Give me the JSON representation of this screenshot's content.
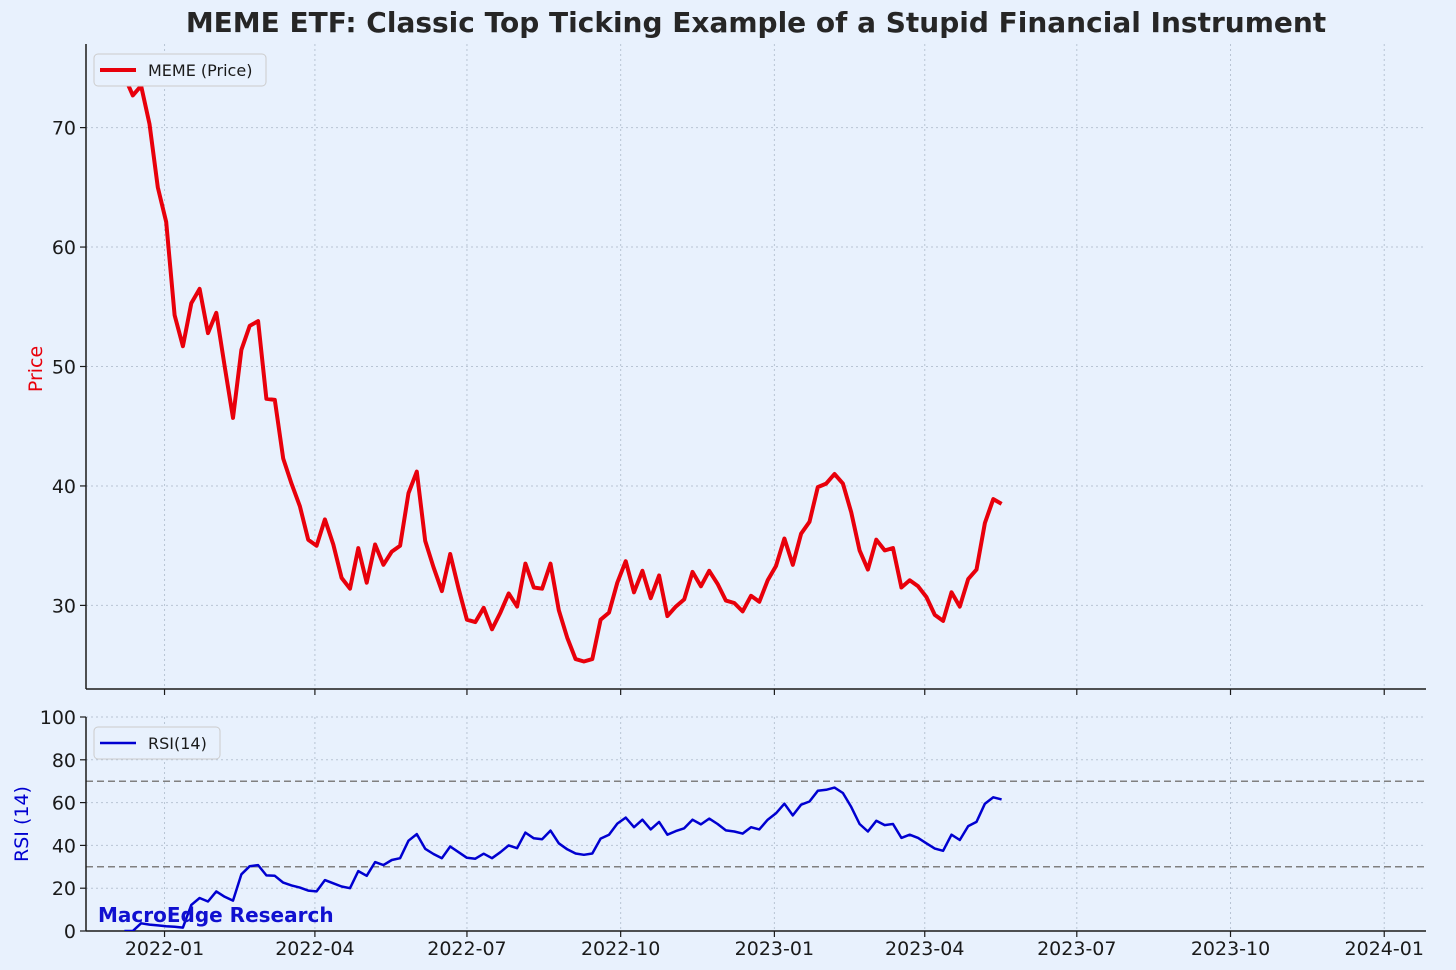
{
  "chart_data": [
    {
      "type": "line",
      "title": "MEME ETF: Classic Top Ticking Example of a Stupid Financial Instrument",
      "xlabel": "",
      "ylabel": "Price",
      "xlim": [
        "2021-11-15",
        "2024-01-26"
      ],
      "ylim": [
        23,
        77
      ],
      "yticks": [
        30,
        40,
        50,
        60,
        70
      ],
      "xticks": [
        "2022-01",
        "2022-04",
        "2022-07",
        "2022-10",
        "2023-01",
        "2023-04",
        "2023-07",
        "2023-10",
        "2024-01"
      ],
      "grid": true,
      "legend_position": "top-left",
      "series": [
        {
          "name": "MEME (Price)",
          "color": "#e8000b",
          "start": "2021-12-08",
          "step_days": 5,
          "values": [
            74.3,
            72.7,
            73.5,
            70.3,
            65.0,
            62.1,
            54.3,
            51.7,
            55.3,
            56.5,
            52.8,
            54.5,
            50.0,
            45.7,
            51.4,
            53.4,
            53.8,
            47.3,
            47.2,
            42.3,
            40.2,
            38.3,
            35.5,
            35.0,
            37.2,
            35.1,
            32.3,
            31.4,
            34.8,
            31.9,
            35.1,
            33.4,
            34.5,
            35.0,
            39.4,
            41.2,
            35.4,
            33.2,
            31.2,
            34.3,
            31.4,
            28.8,
            28.6,
            29.8,
            28.0,
            29.4,
            31.0,
            29.9,
            33.5,
            31.5,
            31.4,
            33.5,
            29.6,
            27.3,
            25.5,
            25.3,
            25.5,
            28.8,
            29.4,
            31.9,
            33.7,
            31.1,
            32.9,
            30.6,
            32.5,
            29.1,
            29.9,
            30.5,
            32.8,
            31.6,
            32.9,
            31.8,
            30.4,
            30.2,
            29.5,
            30.8,
            30.3,
            32.1,
            33.3,
            35.6,
            33.4,
            36.0,
            37.0,
            39.9,
            40.2,
            41.0,
            40.2,
            37.8,
            34.6,
            33.0,
            35.5,
            34.6,
            34.8,
            31.5,
            32.1,
            31.6,
            30.7,
            29.2,
            28.7,
            31.1,
            29.9,
            32.2,
            33.0,
            36.9,
            38.9,
            38.5
          ]
        }
      ]
    },
    {
      "type": "line",
      "xlabel": "",
      "ylabel": "RSI (14)",
      "xlim": [
        "2021-11-15",
        "2024-01-26"
      ],
      "ylim": [
        0,
        100
      ],
      "yticks": [
        0,
        20,
        40,
        60,
        80,
        100
      ],
      "xticks": [
        "2022-01",
        "2022-04",
        "2022-07",
        "2022-10",
        "2023-01",
        "2023-04",
        "2023-07",
        "2023-10",
        "2024-01"
      ],
      "grid": true,
      "legend_position": "top-left",
      "reference_lines": [
        30,
        70
      ],
      "series": [
        {
          "name": "RSI(14)",
          "color": "#0000d0",
          "start": "2021-12-08",
          "step_days": 5,
          "values": [
            0.0,
            0.0,
            3.6,
            3.0,
            2.6,
            2.2,
            2.0,
            1.6,
            12.2,
            15.4,
            13.8,
            18.5,
            16.0,
            14.2,
            26.5,
            30.3,
            30.8,
            26.0,
            25.8,
            22.6,
            21.3,
            20.3,
            18.9,
            18.5,
            23.8,
            22.3,
            20.8,
            20.0,
            28.0,
            25.8,
            32.2,
            30.8,
            33.2,
            34.0,
            42.2,
            45.3,
            38.4,
            36.0,
            34.0,
            39.5,
            36.8,
            34.2,
            33.8,
            36.1,
            34.0,
            36.8,
            40.0,
            38.7,
            46.0,
            43.3,
            42.9,
            46.9,
            41.0,
            38.2,
            36.2,
            35.6,
            36.2,
            43.2,
            45.0,
            50.2,
            53.0,
            48.5,
            52.0,
            47.5,
            51.0,
            45.0,
            46.7,
            48.0,
            52.0,
            49.8,
            52.5,
            50.0,
            47.0,
            46.5,
            45.5,
            48.5,
            47.5,
            52.0,
            55.0,
            59.5,
            54.0,
            59.0,
            60.5,
            65.5,
            66.0,
            67.0,
            64.5,
            58.0,
            50.0,
            46.5,
            51.5,
            49.5,
            50.0,
            43.5,
            45.0,
            43.5,
            41.0,
            38.5,
            37.5,
            45.0,
            42.5,
            49.0,
            51.0,
            59.5,
            62.5,
            61.5
          ]
        }
      ]
    }
  ],
  "watermark": "MacroEdge Research"
}
